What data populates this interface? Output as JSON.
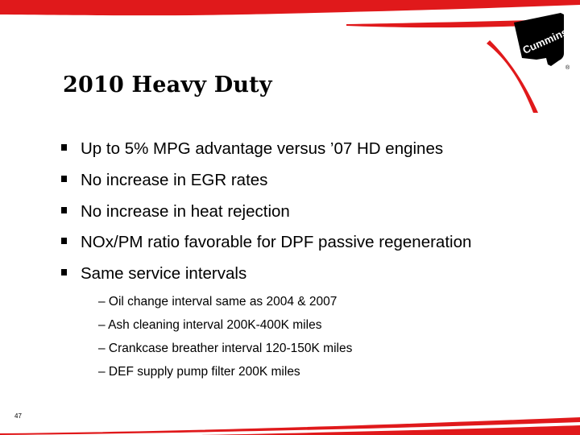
{
  "slide": {
    "title": "2010 Heavy Duty",
    "bullets": [
      {
        "text": "Up to 5% MPG advantage versus ’07 HD engines"
      },
      {
        "text": "No increase in EGR rates"
      },
      {
        "text": "No increase in heat rejection"
      },
      {
        "text": "NOx/PM ratio favorable for DPF passive regeneration"
      },
      {
        "text": "Same service intervals"
      }
    ],
    "sub_bullets": [
      {
        "text": "– Oil change interval same as 2004 & 2007"
      },
      {
        "text": "– Ash cleaning interval  200K-400K miles"
      },
      {
        "text": "– Crankcase breather interval 120-150K miles"
      },
      {
        "text": "– DEF supply pump filter 200K miles"
      }
    ],
    "page_number": "47"
  },
  "brand": {
    "logo_text": "Cummins",
    "registered_mark": "®",
    "accent_color": "#e0191b",
    "logo_color": "#000000"
  }
}
